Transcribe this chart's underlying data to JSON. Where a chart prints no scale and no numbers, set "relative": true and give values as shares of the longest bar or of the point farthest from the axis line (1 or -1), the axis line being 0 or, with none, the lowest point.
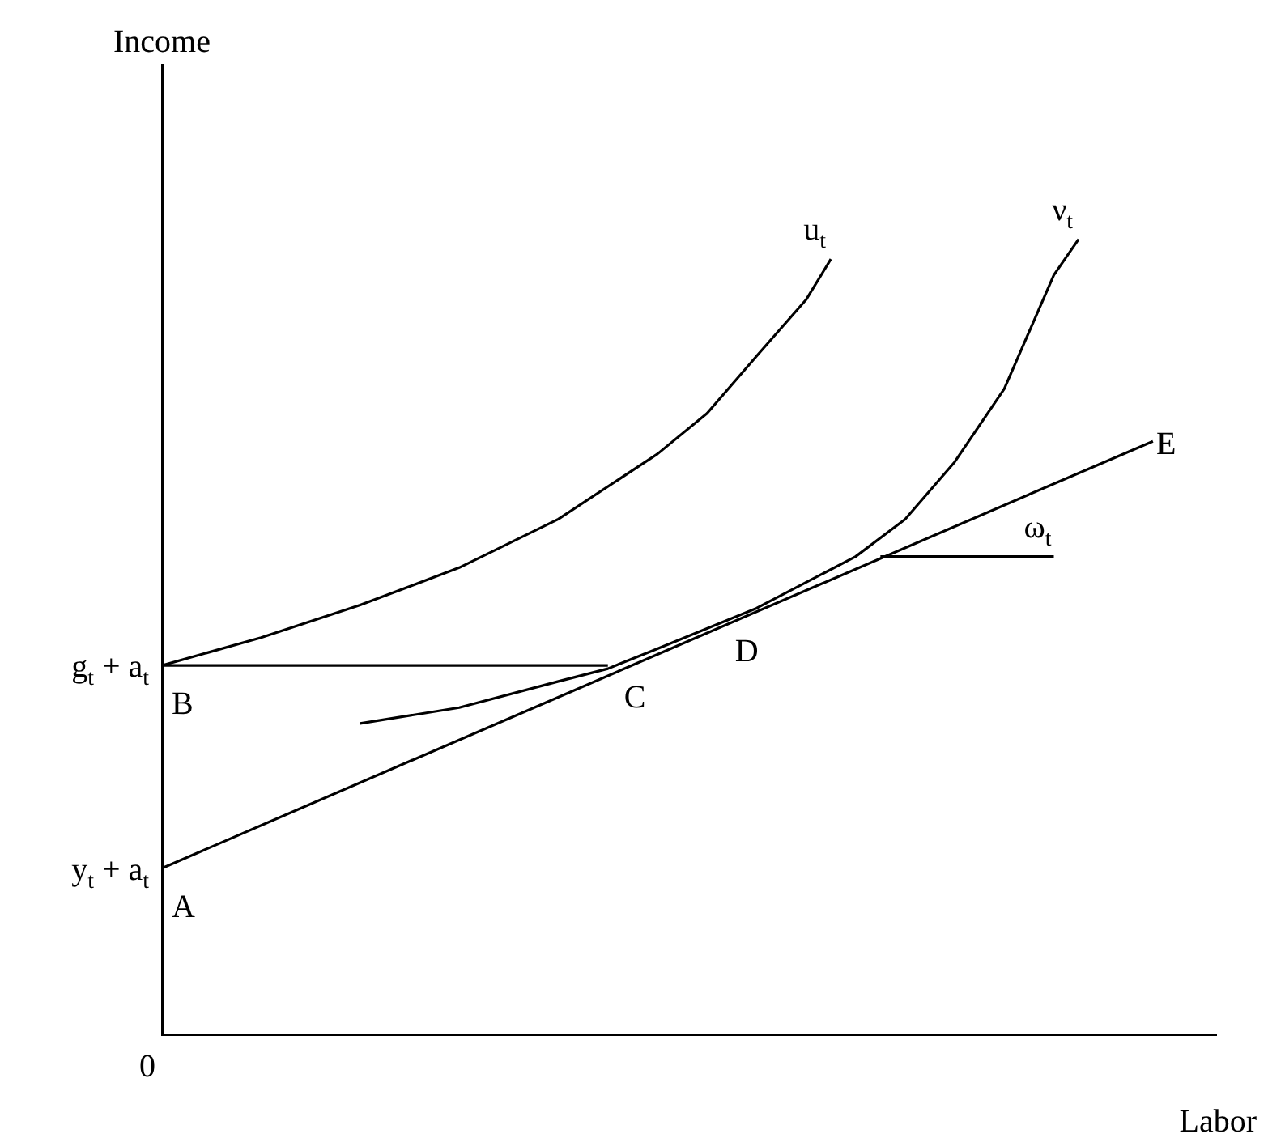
{
  "chart_data": {
    "type": "line",
    "relative": true,
    "xlabel": "Labor",
    "grid": false,
    "legend": false,
    "categories": [
      null,
      null,
      null,
      null,
      null,
      null,
      null,
      null,
      null,
      null,
      null,
      null,
      null,
      null,
      null,
      null,
      null,
      null,
      null,
      null,
      null,
      null,
      null,
      null,
      null,
      null,
      null,
      null,
      null,
      null,
      null,
      null,
      null,
      null,
      null,
      null,
      null,
      null,
      null,
      null,
      null
    ],
    "series": [
      {
        "color": "#000000",
        "values": [
          0.209,
          null,
          null,
          null,
          null,
          null,
          null,
          null,
          null,
          null,
          null,
          null,
          null,
          null,
          null,
          null,
          null,
          null,
          null,
          null,
          0.478,
          null,
          null,
          null,
          null,
          null,
          null,
          null,
          null,
          null,
          null,
          null,
          null,
          null,
          null,
          null,
          null,
          null,
          null,
          null,
          0.746
        ]
      },
      {
        "color": "#000000",
        "values": [
          0.464,
          null,
          null,
          null,
          null,
          null,
          null,
          null,
          null,
          null,
          null,
          null,
          null,
          null,
          null,
          null,
          null,
          null,
          0.464,
          null,
          null,
          null,
          null,
          null,
          null,
          null,
          null,
          null,
          null,
          null,
          null,
          null,
          null,
          null,
          null,
          null,
          null,
          null,
          null,
          null,
          null
        ]
      },
      {
        "name": "u$_{t}$",
        "color": "#000000",
        "values": [
          0.464,
          null,
          null,
          null,
          0.499,
          null,
          null,
          null,
          0.54,
          null,
          null,
          null,
          0.587,
          null,
          null,
          null,
          0.648,
          null,
          null,
          null,
          0.73,
          null,
          0.781,
          null,
          0.853,
          null,
          0.924,
          0.975,
          null,
          null,
          null,
          null,
          null,
          null,
          null,
          null,
          null,
          null,
          null,
          null,
          null
        ]
      },
      {
        "name": "ν$_{t}$",
        "color": "#000000",
        "values": [
          null,
          null,
          null,
          null,
          null,
          null,
          null,
          null,
          0.391,
          null,
          null,
          null,
          0.411,
          null,
          null,
          null,
          0.444,
          null,
          0.46,
          null,
          0.485,
          null,
          null,
          null,
          0.536,
          null,
          null,
          null,
          0.601,
          null,
          0.648,
          null,
          0.72,
          null,
          0.812,
          null,
          0.955,
          1,
          null,
          null,
          null
        ]
      },
      {
        "name": "ω$_{t}$",
        "color": "#000000",
        "values": [
          null,
          null,
          null,
          null,
          null,
          null,
          null,
          null,
          null,
          null,
          null,
          null,
          null,
          null,
          null,
          null,
          null,
          null,
          null,
          null,
          null,
          null,
          null,
          null,
          null,
          null,
          null,
          null,
          null,
          0.601,
          null,
          null,
          null,
          null,
          null,
          null,
          0.601,
          null,
          null,
          null,
          null
        ]
      }
    ],
    "annotations": [
      "g$_{t}$ + a$_{t}$",
      "B",
      "y$_{t}$ + a$_{t}$",
      "A",
      "0",
      "C",
      "D",
      "E",
      "Income"
    ]
  }
}
